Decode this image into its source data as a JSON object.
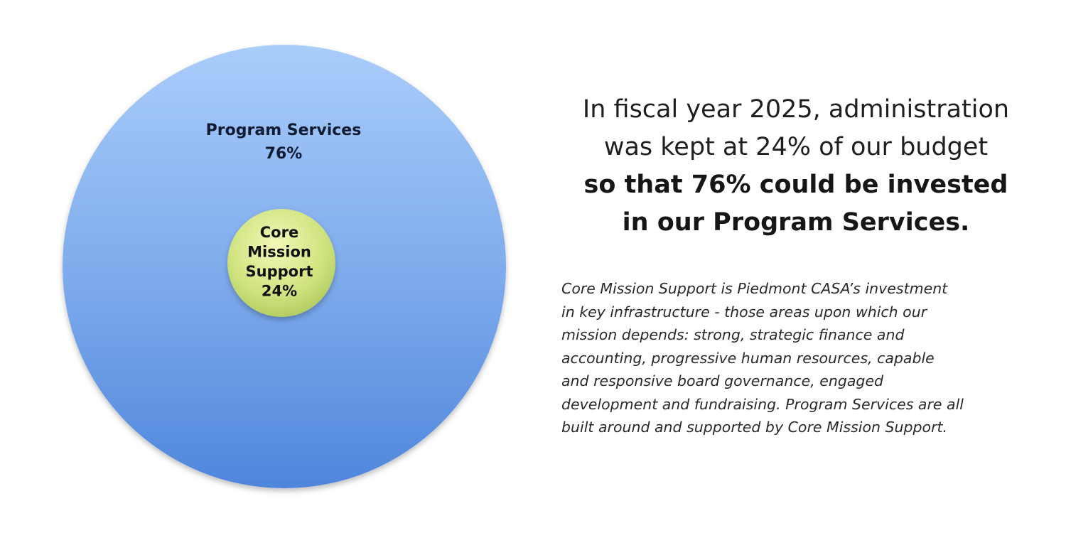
{
  "chart_data": {
    "type": "pie",
    "series": [
      {
        "name": "Program Services",
        "value": 76,
        "value_label": "76%",
        "color": "#6d9fe6"
      },
      {
        "name": "Core Mission Support",
        "value": 24,
        "value_label": "24%",
        "color": "#c9e07a"
      }
    ],
    "inner_label_lines": [
      "Core",
      "Mission",
      "Support",
      "24%"
    ],
    "outer_label_lines": [
      "Program Services",
      "76%"
    ]
  },
  "headline": {
    "line1": "In fiscal year 2025, administration",
    "line2": "was kept at 24% of our budget",
    "line3": "so that 76% could be invested",
    "line4": "in our Program Services."
  },
  "description_lines": [
    "Core Mission Support is Piedmont CASA’s investment",
    "in key infrastructure - those areas upon which our",
    "mission depends: strong, strategic finance and",
    "accounting, progressive human resources, capable",
    "and responsive board governance, engaged",
    "development and fundraising. Program Services are all",
    "built around and supported by Core Mission Support."
  ]
}
